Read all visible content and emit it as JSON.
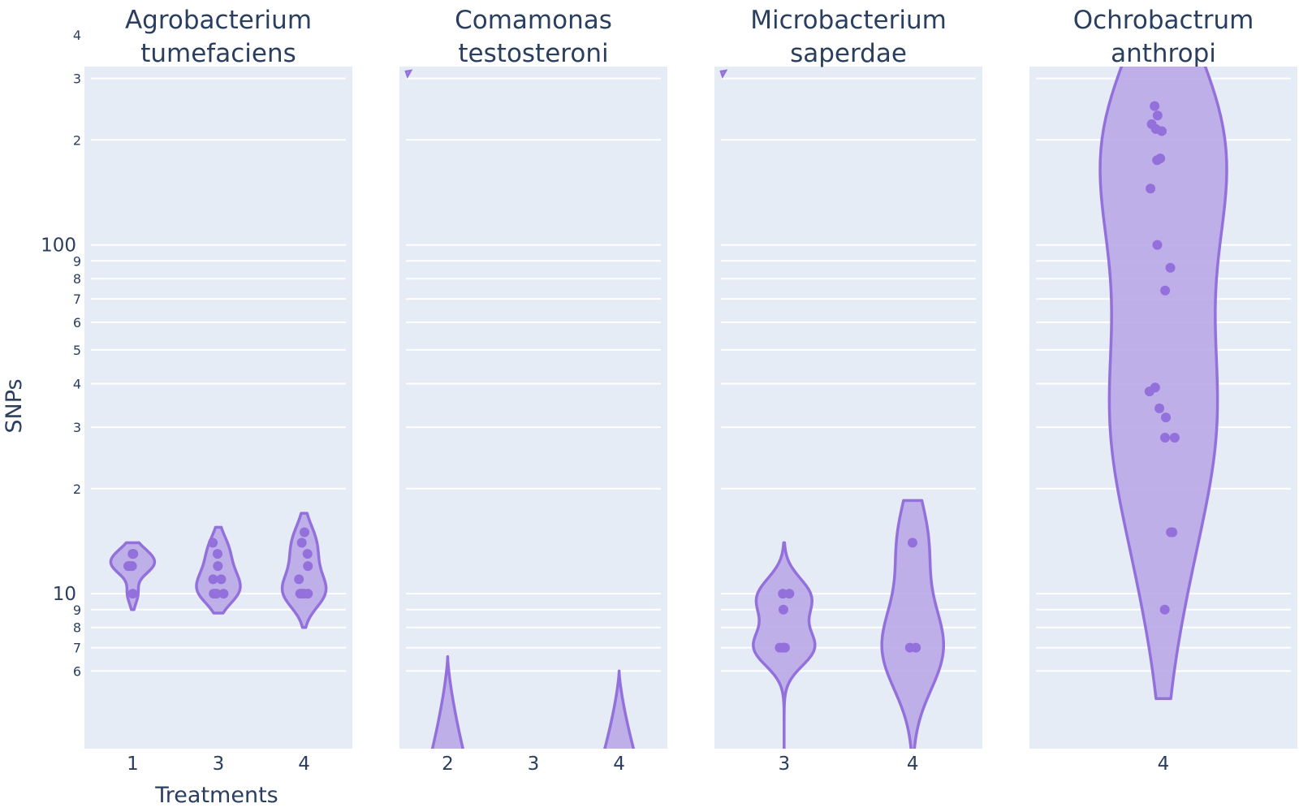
{
  "chart_data": {
    "type": "violin",
    "colors": {
      "plot_bg": "#e5ecf6",
      "grid": "#ffffff",
      "violin_fill": "#b9a9e8",
      "violin_line": "#9370db",
      "point": "#9370db",
      "text": "#2a3f5f"
    },
    "y_axis": {
      "label": "SNPs",
      "scale": "log",
      "range": [
        5,
        450
      ],
      "major_ticks": [
        {
          "value": 10,
          "label": "10"
        },
        {
          "value": 100,
          "label": "100"
        }
      ],
      "minor_ticks": [
        {
          "value": 6,
          "label": "6"
        },
        {
          "value": 7,
          "label": "7"
        },
        {
          "value": 8,
          "label": "8"
        },
        {
          "value": 9,
          "label": "9"
        },
        {
          "value": 20,
          "label": "2"
        },
        {
          "value": 30,
          "label": "3"
        },
        {
          "value": 40,
          "label": "4"
        },
        {
          "value": 50,
          "label": "5"
        },
        {
          "value": 60,
          "label": "6"
        },
        {
          "value": 70,
          "label": "7"
        },
        {
          "value": 80,
          "label": "8"
        },
        {
          "value": 90,
          "label": "9"
        },
        {
          "value": 200,
          "label": "2"
        },
        {
          "value": 300,
          "label": "3"
        },
        {
          "value": 400,
          "label": "4"
        }
      ]
    },
    "x_axis": {
      "label": "Treatments"
    },
    "panels": [
      {
        "title_lines": [
          "Agrobacterium",
          "tumefaciens"
        ],
        "categories": [
          "1",
          "3",
          "4"
        ],
        "groups": [
          {
            "treatment": "1",
            "points": [
              13,
              13,
              12,
              12,
              12,
              10
            ],
            "kde_range": [
              9,
              14
            ]
          },
          {
            "treatment": "3",
            "points": [
              14,
              13,
              12,
              11,
              11,
              10,
              10,
              10
            ],
            "kde_range": [
              8.8,
              15.5
            ]
          },
          {
            "treatment": "4",
            "points": [
              15,
              14,
              13,
              12,
              11,
              10,
              10,
              10,
              10
            ],
            "kde_range": [
              8,
              17
            ]
          }
        ]
      },
      {
        "title_lines": [
          "Comamonas",
          "testosteroni"
        ],
        "categories": [
          "2",
          "3",
          "4"
        ],
        "groups": [
          {
            "treatment": "2",
            "points": [],
            "kde_range": [
              3,
              6.6
            ]
          },
          {
            "treatment": "4",
            "points": [],
            "kde_range": [
              3,
              6
            ]
          }
        ]
      },
      {
        "title_lines": [
          "Microbacterium",
          "saperdae"
        ],
        "categories": [
          "3",
          "4"
        ],
        "groups": [
          {
            "treatment": "3",
            "points": [
              10,
              10,
              9,
              7,
              7,
              7
            ],
            "kde_range": [
              3,
              14
            ]
          },
          {
            "treatment": "4",
            "points": [
              14,
              7,
              7
            ],
            "kde_range": [
              3,
              18.5
            ]
          }
        ]
      },
      {
        "title_lines": [
          "Ochrobactrum",
          "anthropi"
        ],
        "categories": [
          "4"
        ],
        "groups": [
          {
            "treatment": "4",
            "points": [
              250,
              235,
              222,
              215,
              212,
              177,
              175,
              145,
              100,
              86,
              74,
              39,
              38,
              34,
              32,
              28,
              28,
              15,
              15,
              9
            ],
            "kde_range": [
              5,
              355
            ]
          }
        ]
      }
    ]
  }
}
